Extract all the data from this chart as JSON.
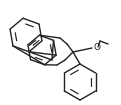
{
  "bg_color": "#ffffff",
  "line_color": "#222222",
  "line_width": 1.0,
  "fig_width": 1.21,
  "fig_height": 1.05,
  "dpi": 100
}
